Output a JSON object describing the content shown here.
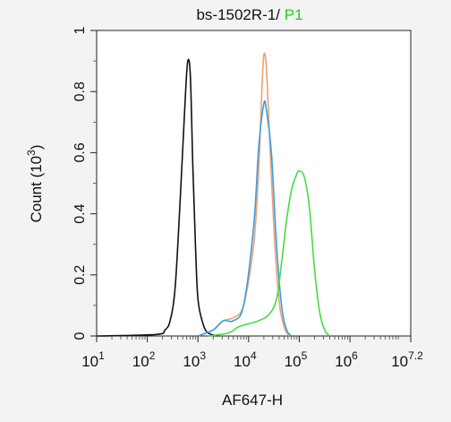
{
  "chart_data": {
    "type": "line",
    "title_parts": [
      {
        "text": "bs-1502R-1/ ",
        "color": "#111111"
      },
      {
        "text": "P1",
        "color": "#22cc22"
      }
    ],
    "xlabel": "AF647-H",
    "ylabel": "Count (10³)",
    "ylabel_base": "Count (10",
    "ylabel_sup": "3",
    "ylabel_end": ")",
    "x_scale": "log",
    "xlim": [
      10,
      15848931
    ],
    "ylim": [
      0,
      1
    ],
    "x_ticks": [
      {
        "value": 10,
        "base": "10",
        "exp": "1"
      },
      {
        "value": 100,
        "base": "10",
        "exp": "2"
      },
      {
        "value": 1000,
        "base": "10",
        "exp": "3"
      },
      {
        "value": 10000,
        "base": "10",
        "exp": "4"
      },
      {
        "value": 100000,
        "base": "10",
        "exp": "5"
      },
      {
        "value": 1000000,
        "base": "10",
        "exp": "6"
      },
      {
        "value": 15848931,
        "base": "10",
        "exp": "7.2"
      }
    ],
    "y_ticks": [
      {
        "value": 0,
        "label": "0"
      },
      {
        "value": 0.2,
        "label": "0.2"
      },
      {
        "value": 0.4,
        "label": "0.4"
      },
      {
        "value": 0.6,
        "label": "0.6"
      },
      {
        "value": 0.8,
        "label": "0.8"
      },
      {
        "value": 1,
        "label": "1"
      }
    ],
    "grid": false,
    "series": [
      {
        "color": "#111111",
        "points": [
          [
            10,
            0
          ],
          [
            150,
            0.005
          ],
          [
            224,
            0.02
          ],
          [
            282,
            0.05
          ],
          [
            355,
            0.16
          ],
          [
            447,
            0.45
          ],
          [
            562,
            0.78
          ],
          [
            630,
            0.9
          ],
          [
            708,
            0.85
          ],
          [
            794,
            0.55
          ],
          [
            891,
            0.3
          ],
          [
            1000,
            0.12
          ],
          [
            1259,
            0.04
          ],
          [
            1585,
            0.01
          ],
          [
            2500,
            0
          ]
        ]
      },
      {
        "color": "#f0a070",
        "points": [
          [
            1000,
            0
          ],
          [
            2000,
            0.02
          ],
          [
            3162,
            0.05
          ],
          [
            5012,
            0.06
          ],
          [
            7943,
            0.1
          ],
          [
            12589,
            0.3
          ],
          [
            15849,
            0.55
          ],
          [
            18000,
            0.78
          ],
          [
            19953,
            0.92
          ],
          [
            22387,
            0.88
          ],
          [
            25119,
            0.7
          ],
          [
            31623,
            0.35
          ],
          [
            39811,
            0.12
          ],
          [
            50119,
            0.03
          ],
          [
            63096,
            0
          ]
        ]
      },
      {
        "color": "#3aa0e0",
        "points": [
          [
            1000,
            0
          ],
          [
            2000,
            0.02
          ],
          [
            3162,
            0.05
          ],
          [
            5012,
            0.05
          ],
          [
            7943,
            0.1
          ],
          [
            12589,
            0.36
          ],
          [
            15849,
            0.62
          ],
          [
            19953,
            0.76
          ],
          [
            22387,
            0.74
          ],
          [
            28184,
            0.6
          ],
          [
            35481,
            0.3
          ],
          [
            44668,
            0.1
          ],
          [
            56234,
            0.02
          ],
          [
            70795,
            0
          ]
        ]
      },
      {
        "color": "#44dd44",
        "points": [
          [
            1585,
            0
          ],
          [
            3981,
            0.01
          ],
          [
            6310,
            0.03
          ],
          [
            10000,
            0.04
          ],
          [
            15849,
            0.05
          ],
          [
            25119,
            0.07
          ],
          [
            35481,
            0.12
          ],
          [
            44668,
            0.24
          ],
          [
            56234,
            0.38
          ],
          [
            70795,
            0.48
          ],
          [
            89125,
            0.53
          ],
          [
            100000,
            0.54
          ],
          [
            125893,
            0.52
          ],
          [
            158489,
            0.42
          ],
          [
            199526,
            0.22
          ],
          [
            251189,
            0.08
          ],
          [
            316228,
            0.02
          ],
          [
            398107,
            0
          ]
        ]
      }
    ]
  }
}
